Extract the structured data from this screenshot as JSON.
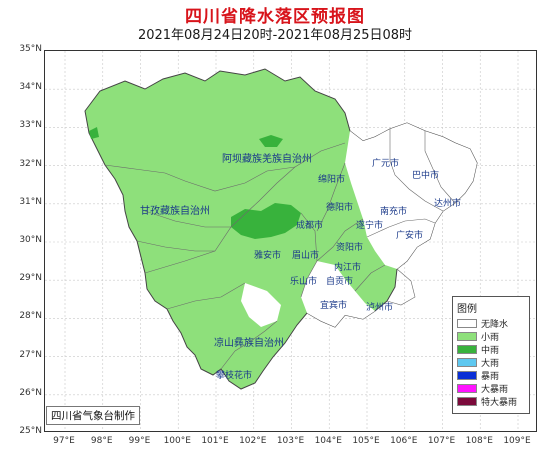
{
  "header": {
    "title": "四川省降水落区预报图",
    "subtitle": "2021年08月24日20时-2021年08月25日08时"
  },
  "axes": {
    "lat_labels": [
      "35°N",
      "34°N",
      "33°N",
      "32°N",
      "31°N",
      "30°N",
      "29°N",
      "28°N",
      "27°N",
      "26°N",
      "25°N"
    ],
    "lon_labels": [
      "97°E",
      "98°E",
      "99°E",
      "100°E",
      "101°E",
      "102°E",
      "103°E",
      "104°E",
      "105°E",
      "106°E",
      "107°E",
      "108°E",
      "109°E"
    ]
  },
  "map": {
    "colors": {
      "none": "#ffffff",
      "light": "#8ee07b",
      "moderate": "#38b23c",
      "heavy": "#5ec8f0",
      "storm": "#0a2fd6",
      "big_storm": "#ff12ff",
      "extreme": "#7b0a3b"
    },
    "prefectures": [
      {
        "name": "阿坝藏族羌族自治州"
      },
      {
        "name": "甘孜藏族自治州"
      },
      {
        "name": "凉山彝族自治州"
      }
    ],
    "cities": [
      {
        "name": "广元市"
      },
      {
        "name": "巴中市"
      },
      {
        "name": "绵阳市"
      },
      {
        "name": "南充市"
      },
      {
        "name": "达州市"
      },
      {
        "name": "德阳市"
      },
      {
        "name": "成都市"
      },
      {
        "name": "遂宁市"
      },
      {
        "name": "广安市"
      },
      {
        "name": "雅安市"
      },
      {
        "name": "眉山市"
      },
      {
        "name": "资阳市"
      },
      {
        "name": "内江市"
      },
      {
        "name": "乐山市"
      },
      {
        "name": "自贡市"
      },
      {
        "name": "宜宾市"
      },
      {
        "name": "泸州市"
      },
      {
        "name": "攀枝花市"
      }
    ]
  },
  "legend": {
    "title": "图例",
    "items": [
      {
        "label": "无降水",
        "color": "#ffffff"
      },
      {
        "label": "小雨",
        "color": "#8ee07b"
      },
      {
        "label": "中雨",
        "color": "#38b23c"
      },
      {
        "label": "大雨",
        "color": "#5ec8f0"
      },
      {
        "label": "暴雨",
        "color": "#0a2fd6"
      },
      {
        "label": "大暴雨",
        "color": "#ff12ff"
      },
      {
        "label": "特大暴雨",
        "color": "#7b0a3b"
      }
    ]
  },
  "footer": {
    "maker": "四川省气象台制作"
  }
}
